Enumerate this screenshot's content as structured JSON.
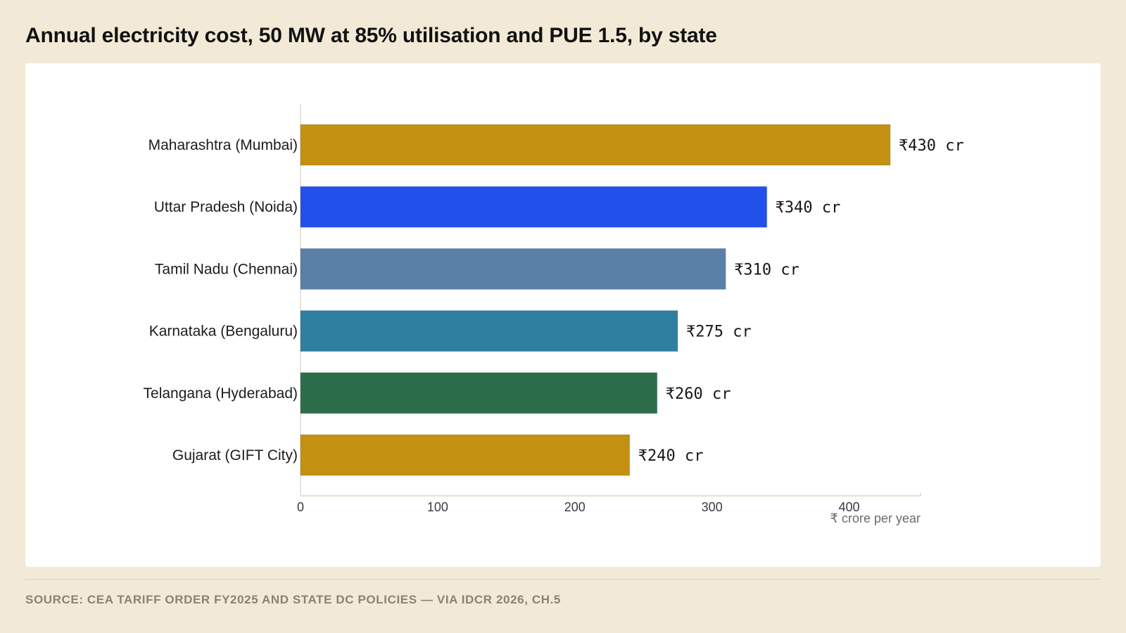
{
  "title": "Annual electricity cost, 50 MW at 85% utilisation and PUE 1.5, by state",
  "source": "SOURCE: CEA TARIFF ORDER FY2025 AND STATE DC POLICIES — VIA IDCR 2026, CH.5",
  "chart_data": {
    "type": "bar",
    "orientation": "horizontal",
    "title": "Annual electricity cost, 50 MW at 85% utilisation and PUE 1.5, by state",
    "xlabel": "₹ crore per year",
    "ylabel": "",
    "categories": [
      "Maharashtra (Mumbai)",
      "Uttar Pradesh (Noida)",
      "Tamil Nadu (Chennai)",
      "Karnataka (Bengaluru)",
      "Telangana (Hyderabad)",
      "Gujarat (GIFT City)"
    ],
    "values": [
      430,
      340,
      310,
      275,
      260,
      240
    ],
    "value_labels": [
      "₹430 cr",
      "₹340 cr",
      "₹310 cr",
      "₹275 cr",
      "₹260 cr",
      "₹240 cr"
    ],
    "colors": [
      "#c59113",
      "#2250eb",
      "#5b80a8",
      "#2f80a0",
      "#2c6e4c",
      "#c59113"
    ],
    "xlim": [
      0,
      450
    ],
    "xticks": [
      0,
      100,
      200,
      300,
      400
    ],
    "grid": false,
    "legend": "none"
  }
}
